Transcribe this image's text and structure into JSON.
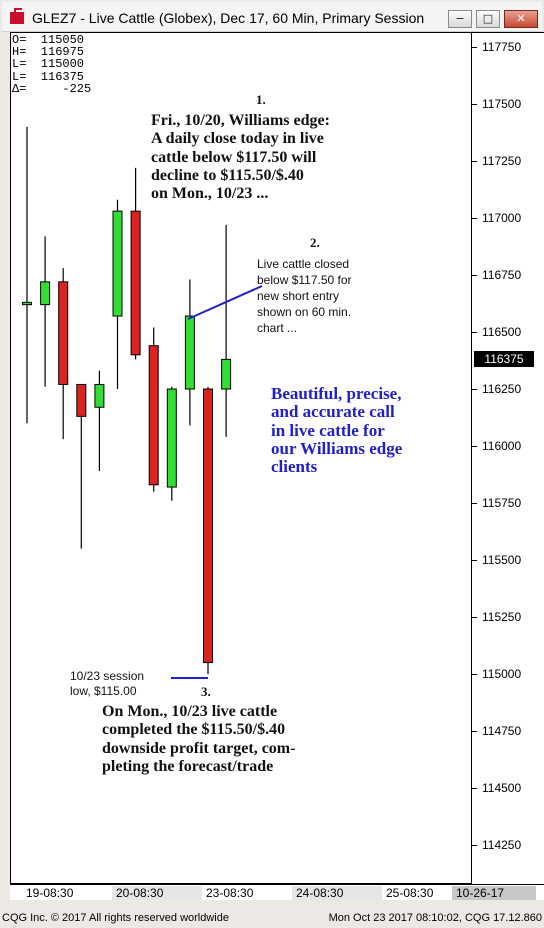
{
  "window": {
    "title": "GLEZ7 - Live Cattle (Globex), Dec 17, 60 Min, Primary Session",
    "buttons": {
      "minimize": "−",
      "maximize": "□",
      "close": "✕"
    }
  },
  "ohlc_readout": [
    "O=  115050",
    "H=  116975",
    "L=  115000",
    "L=  116375",
    "Δ=     -225"
  ],
  "annotations": {
    "n1": "1.",
    "note1": [
      "Fri., 10/20, Williams edge:",
      "A daily close today in live",
      "cattle below $117.50 will",
      "decline to $115.50/$.40",
      "on Mon., 10/23 ..."
    ],
    "n2": "2.",
    "note2": [
      "Live cattle closed",
      "below $117.50 for",
      "new short entry",
      "shown on 60 min.",
      "chart ..."
    ],
    "callout": [
      "Beautiful, precise,",
      "and accurate call",
      "in live cattle for",
      "our Williams edge",
      "clients"
    ],
    "low_label": [
      "10/23 session",
      "low, $115.00"
    ],
    "n3": "3.",
    "note3": [
      "On Mon., 10/23 live cattle",
      "completed the $115.50/$.40",
      "downside profit target, com-",
      "pleting the forecast/trade"
    ]
  },
  "last_price_tag": "116375",
  "footer": {
    "left": "CQG Inc. © 2017 All rights reserved worldwide",
    "right": "Mon Oct 23 2017 08:10:02, CQG 17.12.860"
  },
  "colors": {
    "up": "#33dd33",
    "down": "#dd2222",
    "annotation_line": "#2020c8",
    "callout_text": "#2020c8"
  },
  "chart_data": {
    "type": "candlestick",
    "title": "GLEZ7 - Live Cattle (Globex), Dec 17, 60 Min, Primary Session",
    "ylim": [
      114100,
      117870
    ],
    "y_ticks": [
      "117750",
      "117500",
      "117250",
      "117000",
      "116750",
      "116500",
      "116250",
      "116000",
      "115750",
      "115500",
      "115250",
      "115000",
      "114750",
      "114500",
      "114250"
    ],
    "x_ticks": [
      "19-08:30",
      "20-08:30",
      "23-08:30",
      "24-08:30",
      "25-08:30",
      "10-26-17"
    ],
    "candles": [
      {
        "o": 116620,
        "h": 117400,
        "l": 116100,
        "c": 116630
      },
      {
        "o": 116620,
        "h": 116920,
        "l": 116260,
        "c": 116720
      },
      {
        "o": 116720,
        "h": 116780,
        "l": 116030,
        "c": 116270
      },
      {
        "o": 116270,
        "h": 116270,
        "l": 115550,
        "c": 116130
      },
      {
        "o": 116170,
        "h": 116330,
        "l": 115890,
        "c": 116270
      },
      {
        "o": 116570,
        "h": 117080,
        "l": 116250,
        "c": 117030
      },
      {
        "o": 117030,
        "h": 117220,
        "l": 116380,
        "c": 116400
      },
      {
        "o": 116440,
        "h": 116520,
        "l": 115800,
        "c": 115830
      },
      {
        "o": 115820,
        "h": 116260,
        "l": 115760,
        "c": 116250
      },
      {
        "o": 116250,
        "h": 116730,
        "l": 116090,
        "c": 116570
      },
      {
        "o": 116250,
        "h": 116260,
        "l": 115000,
        "c": 115050
      },
      {
        "o": 116250,
        "h": 116970,
        "l": 116040,
        "c": 116380
      }
    ],
    "last": 116375
  }
}
